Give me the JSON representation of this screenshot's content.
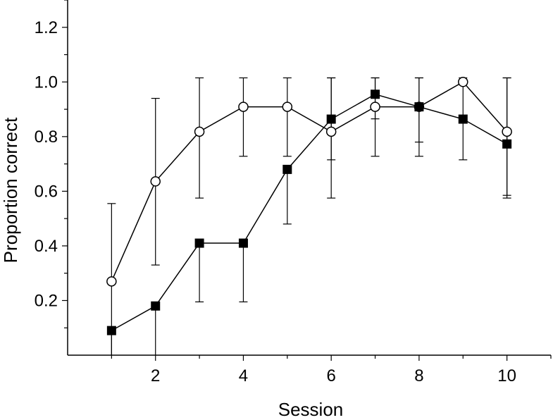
{
  "chart_data": {
    "type": "line",
    "xlabel": "Session",
    "ylabel": "Proportion correct",
    "xlim": [
      0,
      11
    ],
    "ylim": [
      0,
      1.3
    ],
    "x_ticks": [
      2,
      4,
      6,
      8,
      10
    ],
    "y_ticks": [
      0.2,
      0.4,
      0.6,
      0.8,
      1.0,
      1.2
    ],
    "x_tick_labels": [
      "2",
      "4",
      "6",
      "8",
      "10"
    ],
    "y_tick_labels": [
      "0.2",
      "0.4",
      "0.6",
      "0.8",
      "1.0",
      "1.2"
    ],
    "grid": false,
    "legend": "none",
    "x": [
      1,
      2,
      3,
      4,
      5,
      6,
      7,
      8,
      9,
      10
    ],
    "series": [
      {
        "marker": "open-circle",
        "color": "#000000",
        "values": [
          0.27,
          0.636,
          0.818,
          0.909,
          0.909,
          0.818,
          0.909,
          0.909,
          1.0,
          0.818
        ],
        "err_upper": [
          0.555,
          0.94,
          1.015,
          1.015,
          1.015,
          1.015,
          1.015,
          1.015,
          1.0,
          1.015
        ],
        "err_lower": [
          0.0,
          0.33,
          0.575,
          0.728,
          0.728,
          0.575,
          0.728,
          0.728,
          1.0,
          0.575
        ]
      },
      {
        "marker": "filled-square",
        "color": "#000000",
        "values": [
          0.09,
          0.18,
          0.41,
          0.41,
          0.68,
          0.864,
          0.955,
          0.909,
          0.864,
          0.773
        ],
        "err_upper": [
          0.09,
          0.18,
          0.41,
          0.41,
          0.68,
          1.015,
          1.015,
          1.015,
          1.015,
          1.015
        ],
        "err_lower": [
          0.0,
          0.0,
          0.195,
          0.195,
          0.48,
          0.715,
          0.865,
          0.78,
          0.715,
          0.585
        ]
      }
    ]
  }
}
